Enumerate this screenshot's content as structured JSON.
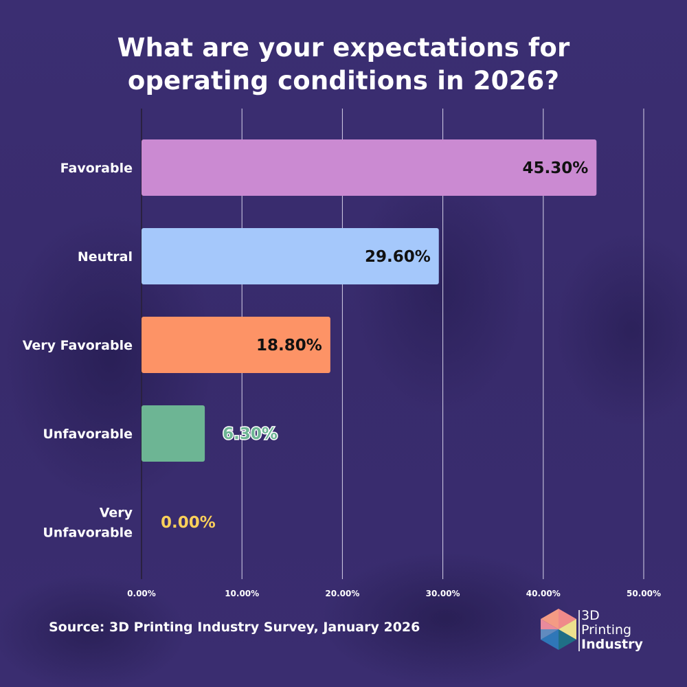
{
  "chart_data": {
    "type": "bar",
    "orientation": "horizontal",
    "title": "What are your expectations for operating conditions in 2026?",
    "title_lines": [
      "What are your expectations for",
      "operating conditions in 2026?"
    ],
    "categories": [
      "Favorable",
      "Neutral",
      "Very Favorable",
      "Unfavorable",
      "Very Unfavorable"
    ],
    "category_label_lines": [
      [
        "Favorable"
      ],
      [
        "Neutral"
      ],
      [
        "Very Favorable"
      ],
      [
        "Unfavorable"
      ],
      [
        "Very",
        "Unfavorable"
      ]
    ],
    "values": [
      45.3,
      29.6,
      18.8,
      6.3,
      0.0
    ],
    "value_labels": [
      "45.30%",
      "29.60%",
      "18.80%",
      "6.30%",
      "0.00%"
    ],
    "colors": [
      "#cb8ad2",
      "#a5c8fb",
      "#fd9366",
      "#6db594",
      "#fbd05a"
    ],
    "value_label_colors": [
      "#111111",
      "#111111",
      "#111111",
      "#6db594",
      "#fbd05a"
    ],
    "xlim": [
      0,
      50
    ],
    "xticks": [
      0,
      10,
      20,
      30,
      40,
      50
    ],
    "xtick_labels": [
      "0.00%",
      "10.00%",
      "20.00%",
      "30.00%",
      "40.00%",
      "50.00%"
    ],
    "xlabel": "",
    "ylabel": "",
    "grid": "vertical",
    "legend": "none"
  },
  "footer": {
    "source": "Source: 3D Printing Industry Survey, January 2026"
  },
  "logo": {
    "line1": "3D",
    "line2": "Printing",
    "line3": "Industry"
  },
  "colors": {
    "background": "#3a2d6e",
    "text": "#ffffff",
    "gridline": "#d8d4ea"
  }
}
